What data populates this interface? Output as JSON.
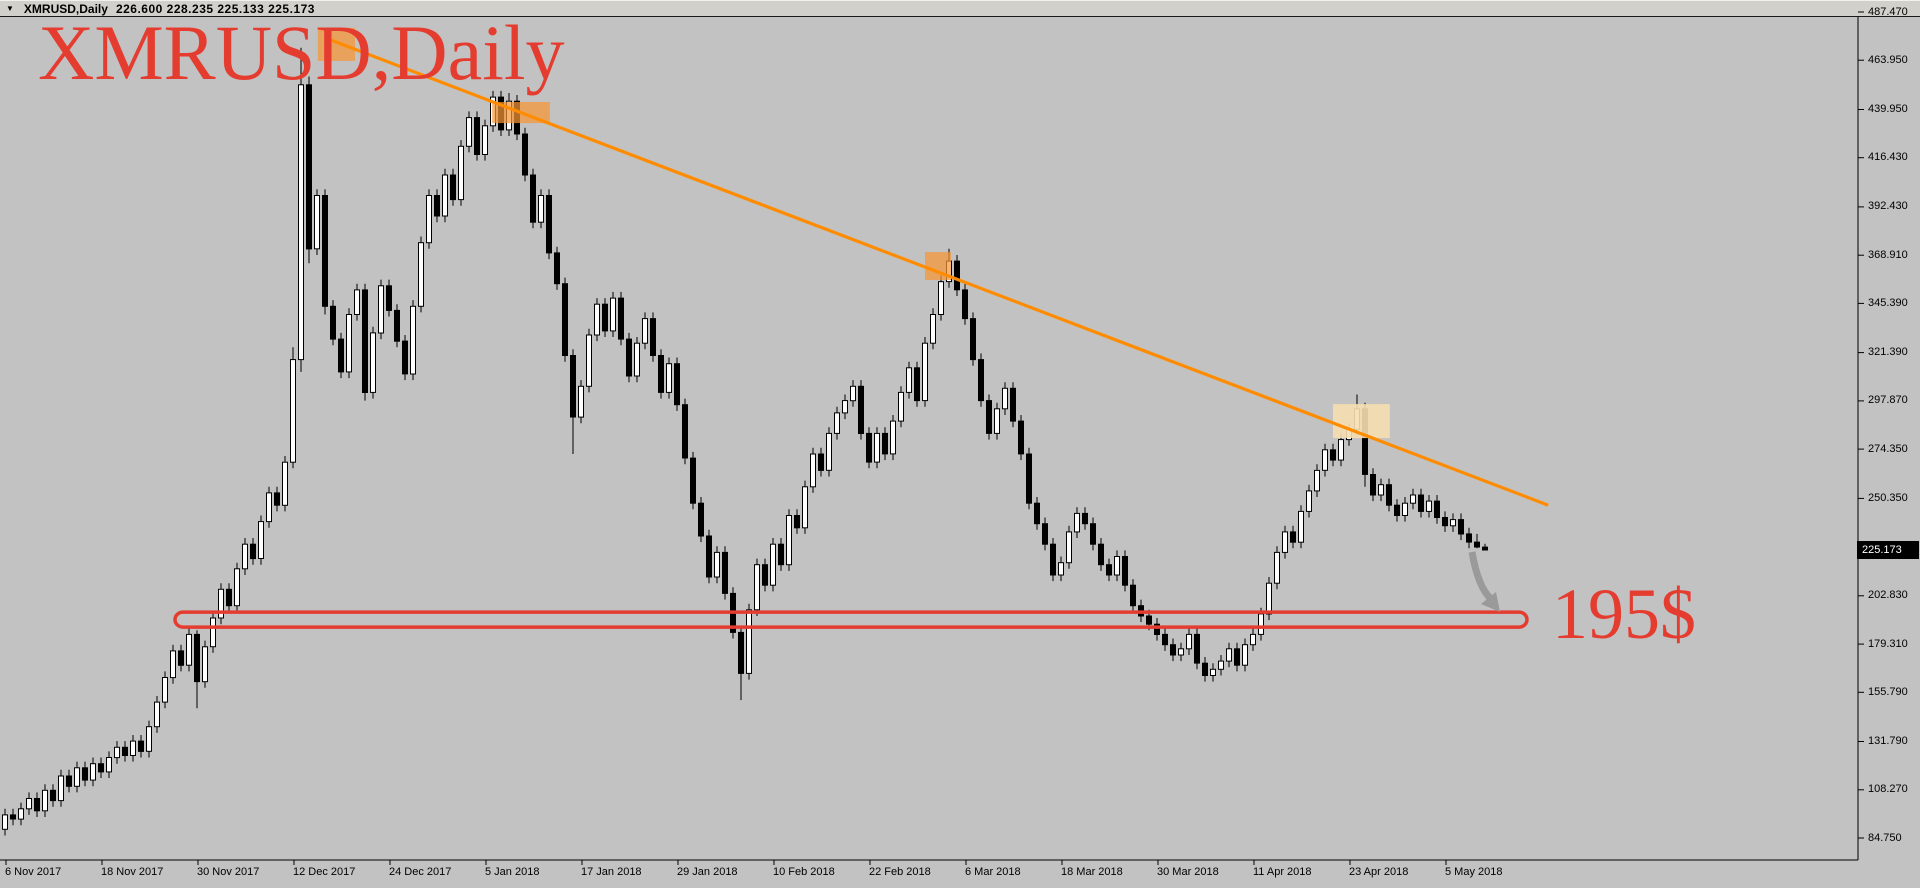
{
  "titlebar": {
    "dropdown_icon": "▼",
    "symbol_period": "XMRUSD,Daily",
    "ohlc": "226.600 228.235 225.133 225.173"
  },
  "annotations": {
    "big_label": "XMRUSD,Daily",
    "support_label": "195$"
  },
  "axes": {
    "current_price": "225.173",
    "price_labels": [
      "487.470",
      "463.950",
      "439.950",
      "416.430",
      "392.430",
      "368.910",
      "345.390",
      "321.390",
      "297.870",
      "274.350",
      "250.350",
      "202.830",
      "179.310",
      "155.790",
      "131.790",
      "108.270",
      "84.750"
    ],
    "date_labels": [
      "6 Nov 2017",
      "18 Nov 2017",
      "30 Nov 2017",
      "12 Dec 2017",
      "24 Dec 2017",
      "5 Jan 2018",
      "17 Jan 2018",
      "29 Jan 2018",
      "10 Feb 2018",
      "22 Feb 2018",
      "6 Mar 2018",
      "18 Mar 2018",
      "30 Mar 2018",
      "11 Apr 2018",
      "23 Apr 2018",
      "5 May 2018"
    ]
  },
  "colors": {
    "chart_bg": "#c2c2c2",
    "titlebar_bg": "#d2d0ca",
    "bull_body": "#ffffff",
    "bear_body": "#000000",
    "wick": "#000000",
    "annotation_red": "#e53c30",
    "trendline_orange": "#ff8c00",
    "box_orange": "rgba(247,150,52,0.72)",
    "box_cream": "rgba(246,222,176,0.9)",
    "arrow_gray": "#9a9a9a",
    "axis_line": "#000000",
    "badge_bg": "#000000",
    "badge_text": "#ffffff"
  },
  "chart_data": {
    "type": "candlestick-ohlc",
    "symbol": "XMRUSD",
    "timeframe": "Daily",
    "title": "XMRUSD,Daily",
    "start_date": "2017-11-04",
    "interval_days": 1,
    "y_axis_ticks": [
      487.47,
      463.95,
      439.95,
      416.43,
      392.43,
      368.91,
      345.39,
      321.39,
      297.87,
      274.35,
      250.35,
      202.83,
      179.31,
      155.79,
      131.79,
      108.27,
      84.75
    ],
    "x_axis_tick_dates": [
      "2017-11-06",
      "2017-11-18",
      "2017-11-30",
      "2017-12-12",
      "2017-12-24",
      "2018-01-05",
      "2018-01-17",
      "2018-01-29",
      "2018-02-10",
      "2018-02-22",
      "2018-03-06",
      "2018-03-18",
      "2018-03-30",
      "2018-04-11",
      "2018-04-23",
      "2018-05-05"
    ],
    "current_close": 225.173,
    "grid": "off",
    "legend": "none",
    "candles_format": [
      "open",
      "high",
      "low",
      "close"
    ],
    "candles": [
      [
        88,
        93,
        85,
        90
      ],
      [
        90,
        93,
        86,
        89
      ],
      [
        89,
        99,
        86,
        96
      ],
      [
        96,
        99,
        91,
        94
      ],
      [
        94,
        102,
        91,
        99
      ],
      [
        99,
        107,
        96,
        104
      ],
      [
        104,
        107,
        95,
        98
      ],
      [
        98,
        111,
        95,
        108
      ],
      [
        108,
        111,
        100,
        103
      ],
      [
        103,
        118,
        100,
        115
      ],
      [
        115,
        118,
        107,
        110
      ],
      [
        110,
        122,
        107,
        119
      ],
      [
        119,
        122,
        110,
        113
      ],
      [
        113,
        124,
        110,
        121
      ],
      [
        121,
        124,
        114,
        117
      ],
      [
        117,
        127,
        114,
        124
      ],
      [
        124,
        132,
        121,
        129
      ],
      [
        129,
        132,
        122,
        125
      ],
      [
        125,
        135,
        122,
        132
      ],
      [
        132,
        135,
        124,
        127
      ],
      [
        127,
        142,
        124,
        139
      ],
      [
        139,
        154,
        136,
        151
      ],
      [
        151,
        166,
        148,
        163
      ],
      [
        163,
        179,
        160,
        176
      ],
      [
        176,
        179,
        166,
        169
      ],
      [
        169,
        187,
        166,
        184
      ],
      [
        184,
        186,
        148,
        161
      ],
      [
        161,
        181,
        158,
        178
      ],
      [
        178,
        195,
        175,
        192
      ],
      [
        192,
        209,
        189,
        206
      ],
      [
        206,
        209,
        195,
        198
      ],
      [
        198,
        219,
        195,
        216
      ],
      [
        216,
        231,
        213,
        228
      ],
      [
        228,
        231,
        218,
        221
      ],
      [
        221,
        242,
        218,
        239
      ],
      [
        239,
        256,
        236,
        253
      ],
      [
        253,
        256,
        244,
        247
      ],
      [
        247,
        271,
        244,
        268
      ],
      [
        268,
        324,
        265,
        318
      ],
      [
        318,
        470,
        312,
        452
      ],
      [
        452,
        456,
        365,
        372
      ],
      [
        372,
        401,
        369,
        398
      ],
      [
        398,
        401,
        340,
        344
      ],
      [
        344,
        347,
        325,
        328
      ],
      [
        328,
        331,
        309,
        312
      ],
      [
        312,
        343,
        309,
        340
      ],
      [
        340,
        355,
        337,
        352
      ],
      [
        352,
        355,
        298,
        302
      ],
      [
        302,
        334,
        299,
        331
      ],
      [
        331,
        357,
        328,
        354
      ],
      [
        354,
        357,
        339,
        342
      ],
      [
        342,
        345,
        324,
        327
      ],
      [
        327,
        330,
        308,
        311
      ],
      [
        311,
        347,
        308,
        344
      ],
      [
        344,
        378,
        341,
        375
      ],
      [
        375,
        401,
        372,
        398
      ],
      [
        398,
        401,
        385,
        388
      ],
      [
        388,
        411,
        385,
        408
      ],
      [
        408,
        411,
        393,
        396
      ],
      [
        396,
        425,
        393,
        422
      ],
      [
        422,
        439,
        419,
        436
      ],
      [
        436,
        439,
        415,
        418
      ],
      [
        418,
        435,
        415,
        432
      ],
      [
        432,
        449,
        429,
        446
      ],
      [
        446,
        449,
        427,
        430
      ],
      [
        430,
        448,
        427,
        444
      ],
      [
        444,
        447,
        425,
        428
      ],
      [
        428,
        431,
        405,
        408
      ],
      [
        408,
        411,
        382,
        385
      ],
      [
        385,
        401,
        382,
        398
      ],
      [
        398,
        401,
        367,
        370
      ],
      [
        370,
        373,
        352,
        355
      ],
      [
        355,
        358,
        317,
        320
      ],
      [
        320,
        323,
        272,
        290
      ],
      [
        290,
        308,
        287,
        305
      ],
      [
        305,
        333,
        302,
        330
      ],
      [
        330,
        348,
        327,
        345
      ],
      [
        345,
        348,
        329,
        332
      ],
      [
        332,
        351,
        329,
        348
      ],
      [
        348,
        351,
        325,
        328
      ],
      [
        328,
        331,
        307,
        310
      ],
      [
        310,
        329,
        307,
        326
      ],
      [
        326,
        341,
        323,
        338
      ],
      [
        338,
        341,
        317,
        320
      ],
      [
        320,
        323,
        299,
        302
      ],
      [
        302,
        319,
        299,
        316
      ],
      [
        316,
        319,
        293,
        296
      ],
      [
        296,
        299,
        267,
        270
      ],
      [
        270,
        273,
        245,
        248
      ],
      [
        248,
        251,
        229,
        232
      ],
      [
        232,
        235,
        209,
        212
      ],
      [
        212,
        227,
        209,
        224
      ],
      [
        224,
        227,
        201,
        204
      ],
      [
        204,
        207,
        182,
        185
      ],
      [
        185,
        188,
        152,
        165
      ],
      [
        165,
        199,
        162,
        196
      ],
      [
        196,
        221,
        193,
        218
      ],
      [
        218,
        221,
        205,
        208
      ],
      [
        208,
        231,
        205,
        228
      ],
      [
        228,
        231,
        215,
        218
      ],
      [
        218,
        245,
        215,
        242
      ],
      [
        242,
        245,
        233,
        236
      ],
      [
        236,
        259,
        233,
        256
      ],
      [
        256,
        275,
        253,
        272
      ],
      [
        272,
        275,
        261,
        264
      ],
      [
        264,
        285,
        261,
        282
      ],
      [
        282,
        295,
        279,
        292
      ],
      [
        292,
        301,
        289,
        298
      ],
      [
        298,
        308,
        295,
        305
      ],
      [
        305,
        308,
        279,
        282
      ],
      [
        282,
        285,
        265,
        268
      ],
      [
        268,
        285,
        265,
        282
      ],
      [
        282,
        285,
        269,
        272
      ],
      [
        272,
        291,
        269,
        288
      ],
      [
        288,
        305,
        285,
        302
      ],
      [
        302,
        317,
        299,
        314
      ],
      [
        314,
        317,
        295,
        298
      ],
      [
        298,
        329,
        295,
        326
      ],
      [
        326,
        343,
        323,
        340
      ],
      [
        340,
        359,
        337,
        356
      ],
      [
        356,
        372,
        353,
        366
      ],
      [
        366,
        369,
        349,
        352
      ],
      [
        352,
        355,
        335,
        338
      ],
      [
        338,
        341,
        315,
        318
      ],
      [
        318,
        321,
        295,
        298
      ],
      [
        298,
        301,
        279,
        282
      ],
      [
        282,
        297,
        279,
        294
      ],
      [
        294,
        307,
        291,
        304
      ],
      [
        304,
        307,
        285,
        288
      ],
      [
        288,
        291,
        269,
        272
      ],
      [
        272,
        275,
        245,
        248
      ],
      [
        248,
        251,
        235,
        238
      ],
      [
        238,
        241,
        225,
        228
      ],
      [
        228,
        231,
        210,
        213
      ],
      [
        213,
        222,
        210,
        219
      ],
      [
        219,
        237,
        216,
        234
      ],
      [
        234,
        246,
        231,
        243
      ],
      [
        243,
        246,
        235,
        238
      ],
      [
        238,
        241,
        225,
        228
      ],
      [
        228,
        231,
        215,
        218
      ],
      [
        218,
        221,
        210,
        213
      ],
      [
        213,
        225,
        210,
        222
      ],
      [
        222,
        225,
        205,
        208
      ],
      [
        208,
        211,
        195,
        198
      ],
      [
        198,
        201,
        190,
        193
      ],
      [
        193,
        196,
        186,
        189
      ],
      [
        189,
        192,
        181,
        184
      ],
      [
        184,
        187,
        176,
        179
      ],
      [
        179,
        182,
        171,
        174
      ],
      [
        174,
        180,
        171,
        177
      ],
      [
        177,
        187,
        174,
        184
      ],
      [
        184,
        187,
        167,
        170
      ],
      [
        170,
        173,
        161,
        164
      ],
      [
        164,
        170,
        161,
        167
      ],
      [
        167,
        174,
        164,
        171
      ],
      [
        171,
        180,
        168,
        177
      ],
      [
        177,
        180,
        166,
        169
      ],
      [
        169,
        182,
        166,
        179
      ],
      [
        179,
        187,
        176,
        184
      ],
      [
        184,
        197,
        181,
        194
      ],
      [
        194,
        212,
        191,
        209
      ],
      [
        209,
        227,
        206,
        224
      ],
      [
        224,
        237,
        221,
        234
      ],
      [
        234,
        237,
        226,
        229
      ],
      [
        229,
        247,
        226,
        244
      ],
      [
        244,
        257,
        241,
        254
      ],
      [
        254,
        267,
        251,
        264
      ],
      [
        264,
        277,
        261,
        274
      ],
      [
        274,
        277,
        266,
        269
      ],
      [
        269,
        282,
        266,
        279
      ],
      [
        279,
        287,
        276,
        284
      ],
      [
        284,
        301,
        281,
        294
      ],
      [
        294,
        297,
        256,
        262
      ],
      [
        262,
        265,
        249,
        252
      ],
      [
        252,
        260,
        249,
        257
      ],
      [
        257,
        260,
        244,
        247
      ],
      [
        247,
        250,
        239,
        242
      ],
      [
        242,
        251,
        239,
        248
      ],
      [
        248,
        255,
        245,
        252
      ],
      [
        252,
        255,
        241,
        244
      ],
      [
        244,
        252,
        241,
        249
      ],
      [
        249,
        252,
        238,
        241
      ],
      [
        241,
        244,
        234,
        237
      ],
      [
        237,
        243,
        234,
        240
      ],
      [
        240,
        243,
        230,
        233
      ],
      [
        233,
        236,
        226,
        229
      ],
      [
        229,
        233,
        226,
        226.6
      ],
      [
        226.6,
        228.235,
        225.133,
        225.173
      ]
    ],
    "overlays": {
      "trendline": {
        "type": "line",
        "from": {
          "index": 42.6,
          "price": 474
        },
        "to": {
          "index": 194.9,
          "price": 247
        }
      },
      "boxes": [
        {
          "index1": 41.1,
          "index2": 45.75,
          "price1": 479.7,
          "price2": 463.6,
          "style": "orange"
        },
        {
          "index1": 62.9,
          "index2": 70.1,
          "price1": 443.6,
          "price2": 433.3,
          "style": "orange"
        },
        {
          "index1": 117.0,
          "index2": 120.25,
          "price1": 370.4,
          "price2": 356.8,
          "style": "orange"
        },
        {
          "index1": 168.0,
          "index2": 175.1,
          "price1": 296.3,
          "price2": 279.7,
          "style": "cream"
        }
      ],
      "support_channel": {
        "type": "rounded-rect",
        "index1": 23.25,
        "index2": 192.25,
        "price_top": 194.9,
        "price_bottom": 187.6,
        "label": "195$"
      },
      "arrow": {
        "type": "curved-arrow",
        "from": {
          "index": 185.4,
          "price": 224.3
        },
        "to": {
          "index": 188.5,
          "price": 197.3
        }
      }
    }
  }
}
